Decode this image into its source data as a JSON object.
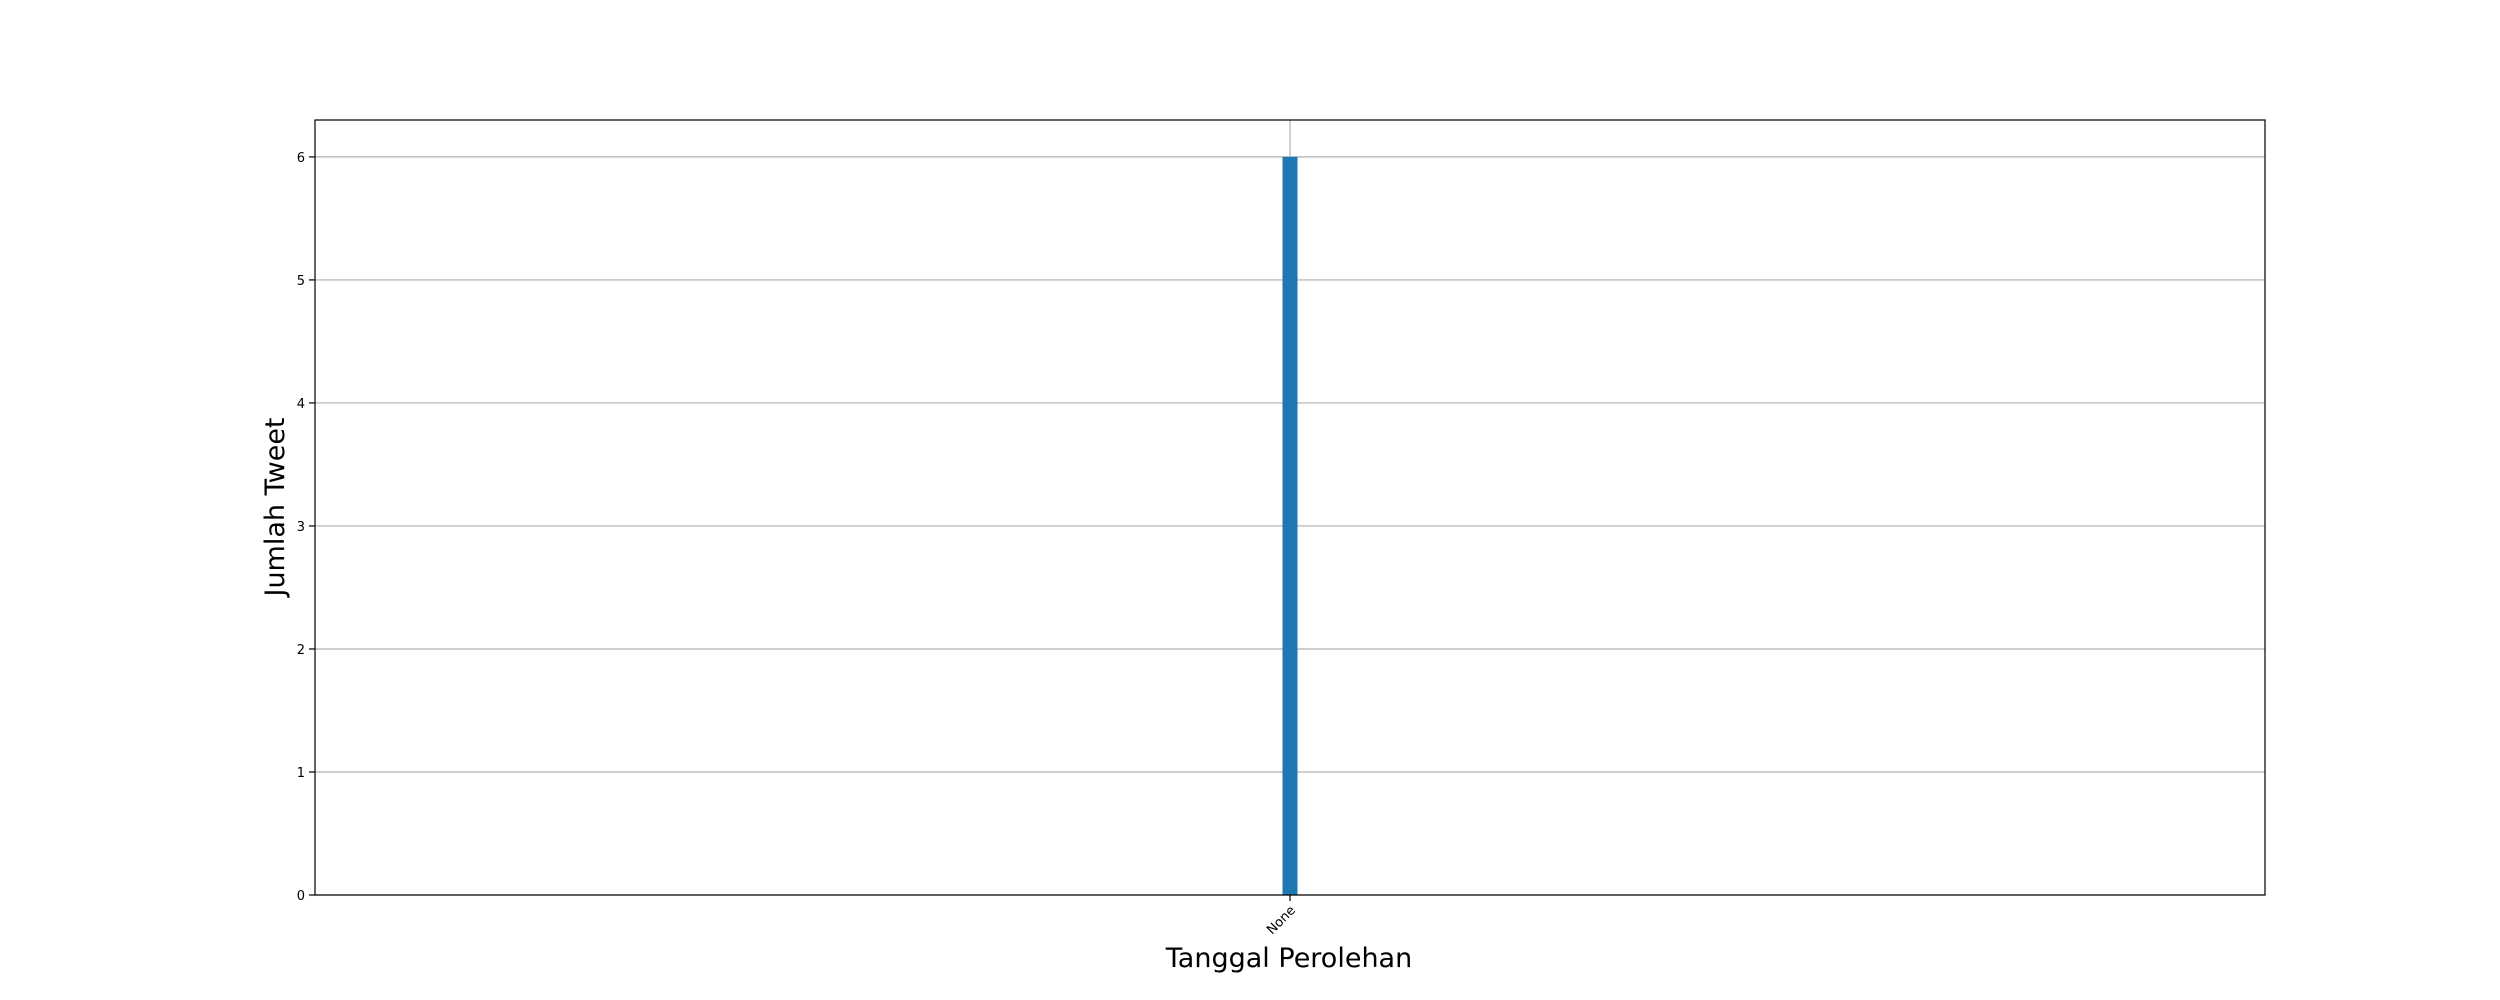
{
  "chart_data": {
    "type": "bar",
    "categories": [
      "None"
    ],
    "series": [
      {
        "values": [
          6
        ]
      }
    ],
    "xlabel": "Tanggal Perolehan",
    "ylabel": "Jumlah Tweet",
    "ylim": [
      0,
      6.3
    ],
    "yticks": [
      0,
      1,
      2,
      3,
      4,
      5,
      6
    ],
    "grid": true,
    "bar_color": "#1f77b4",
    "grid_color": "#b0b0b0"
  }
}
